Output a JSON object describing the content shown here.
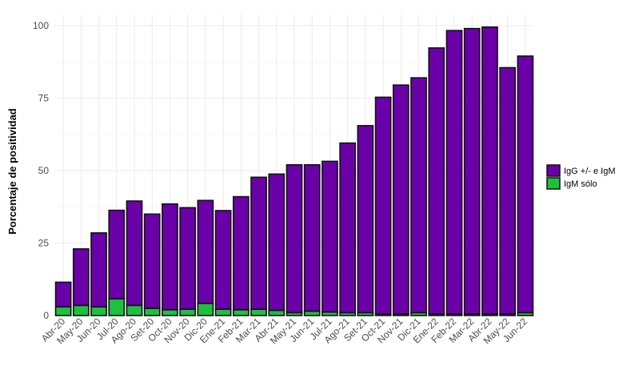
{
  "chart_data": {
    "type": "bar",
    "stacked": true,
    "categories": [
      "Abr-20",
      "May-20",
      "Jun-20",
      "Jul-20",
      "Ago-20",
      "Set-20",
      "Oct-20",
      "Nov-20",
      "Dic-20",
      "Ene-21",
      "Feb-21",
      "Mar-21",
      "Abr-21",
      "May-21",
      "Jun-21",
      "Jul-21",
      "Ago-21",
      "Set-21",
      "Oct-21",
      "Nov-21",
      "Dic-21",
      "Ene-22",
      "Feb-22",
      "Mar-22",
      "Abr-22",
      "May-22",
      "Jun-22"
    ],
    "series": [
      {
        "name": "IgG +/- e IgM",
        "color": "#6a00a8",
        "values": [
          8.5,
          19.5,
          25.5,
          30.5,
          36,
          32.5,
          36.5,
          35,
          35.5,
          34,
          39,
          45.5,
          47,
          51,
          50.5,
          52,
          58.5,
          64.5,
          74.8,
          79,
          81,
          91.8,
          97.8,
          98.5,
          99,
          85,
          88.5
        ]
      },
      {
        "name": "IgM sólo",
        "color": "#1fbf3f",
        "values": [
          3,
          3.5,
          3,
          5.8,
          3.5,
          2.5,
          2,
          2.2,
          4.2,
          2.2,
          2,
          2.2,
          1.8,
          1,
          1.5,
          1.2,
          1,
          1,
          0.5,
          0.5,
          1,
          0.5,
          0.5,
          0.5,
          0.5,
          0.5,
          1
        ]
      }
    ],
    "ylabel": "Porcentaje de positividad",
    "xlabel": "",
    "ylim": [
      0,
      100
    ],
    "yticks": [
      0,
      25,
      50,
      75,
      100
    ],
    "grid": true,
    "legend_position": "right"
  }
}
